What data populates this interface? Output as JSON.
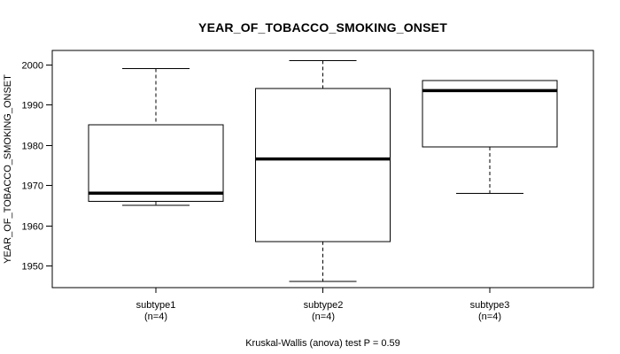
{
  "colors": {
    "foreground": "#000000",
    "background": "#ffffff"
  },
  "chart_data": {
    "type": "boxplot",
    "title": "YEAR_OF_TOBACCO_SMOKING_ONSET",
    "ylabel": "YEAR_OF_TOBACCO_SMOKING_ONSET",
    "caption": "Kruskal-Wallis (anova) test P = 0.59",
    "p_value": 0.59,
    "grid": false,
    "ylim": [
      1944.5,
      2003.5
    ],
    "yticks": [
      1950,
      1960,
      1970,
      1980,
      1990,
      2000
    ],
    "groups": [
      {
        "label": "subtype1",
        "sublabel": "(n=4)",
        "n": 4,
        "whisker_low": 1965,
        "q1": 1966,
        "median": 1968,
        "q3": 1985,
        "whisker_high": 1999
      },
      {
        "label": "subtype2",
        "sublabel": "(n=4)",
        "n": 4,
        "whisker_low": 1946,
        "q1": 1956,
        "median": 1976.5,
        "q3": 1994,
        "whisker_high": 2001
      },
      {
        "label": "subtype3",
        "sublabel": "(n=4)",
        "n": 4,
        "whisker_low": 1968,
        "q1": 1979.5,
        "median": 1993.5,
        "q3": 1996,
        "whisker_high": 1996
      }
    ]
  }
}
